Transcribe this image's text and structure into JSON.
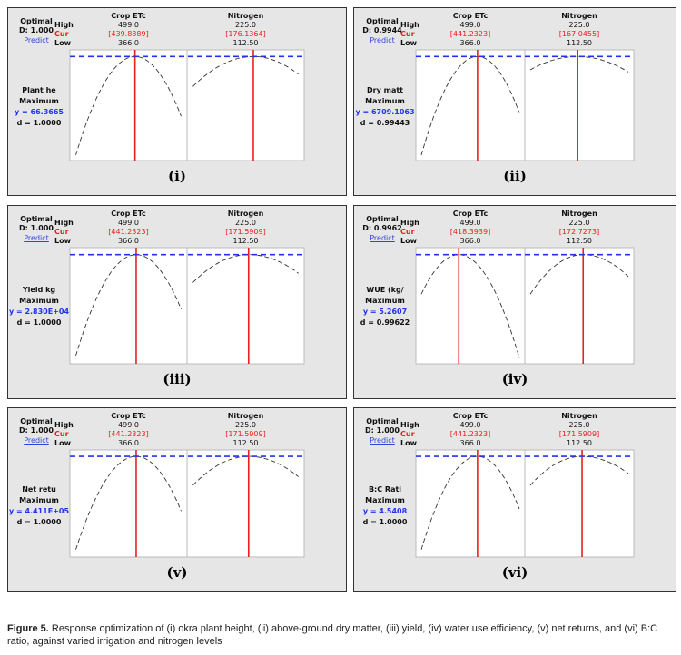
{
  "figure": {
    "panels": [
      {
        "label": "(i)",
        "optimal": "Optimal",
        "d_total": "D: 1.000",
        "predict": "Predict",
        "high": "High",
        "cur": "Cur",
        "low": "Low",
        "factors": [
          {
            "name": "Crop ETc",
            "high": "499.0",
            "cur": "[439.8889]",
            "low": "366.0"
          },
          {
            "name": "Nitrogen",
            "high": "225.0",
            "cur": "[176.1364]",
            "low": "112.50"
          }
        ],
        "response": "Plant he",
        "goal": "Maximum",
        "y": "y = 66.3665",
        "d": "d = 1.0000"
      },
      {
        "label": "(ii)",
        "optimal": "Optimal",
        "d_total": "D: 0.9944",
        "predict": "Predict",
        "high": "High",
        "cur": "Cur",
        "low": "Low",
        "factors": [
          {
            "name": "Crop ETc",
            "high": "499.0",
            "cur": "[441.2323]",
            "low": "366.0"
          },
          {
            "name": "Nitrogen",
            "high": "225.0",
            "cur": "[167.0455]",
            "low": "112.50"
          }
        ],
        "response": "Dry matt",
        "goal": "Maximum",
        "y": "y = 6709.1063",
        "d": "d = 0.99443"
      },
      {
        "label": "(iii)",
        "optimal": "Optimal",
        "d_total": "D: 1.000",
        "predict": "Predict",
        "high": "High",
        "cur": "Cur",
        "low": "Low",
        "factors": [
          {
            "name": "Crop ETc",
            "high": "499.0",
            "cur": "[441.2323]",
            "low": "366.0"
          },
          {
            "name": "Nitrogen",
            "high": "225.0",
            "cur": "[171.5909]",
            "low": "112.50"
          }
        ],
        "response": "Yield kg",
        "goal": "Maximum",
        "y": "y = 2.830E+04",
        "d": "d = 1.0000"
      },
      {
        "label": "(iv)",
        "optimal": "Optimal",
        "d_total": "D: 0.9962",
        "predict": "Predict",
        "high": "High",
        "cur": "Cur",
        "low": "Low",
        "factors": [
          {
            "name": "Crop ETc",
            "high": "499.0",
            "cur": "[418.3939]",
            "low": "366.0"
          },
          {
            "name": "Nitrogen",
            "high": "225.0",
            "cur": "[172.7273]",
            "low": "112.50"
          }
        ],
        "response": "WUE (kg/",
        "goal": "Maximum",
        "y": "y = 5.2607",
        "d": "d = 0.99622"
      },
      {
        "label": "(v)",
        "optimal": "Optimal",
        "d_total": "D: 1.000",
        "predict": "Predict",
        "high": "High",
        "cur": "Cur",
        "low": "Low",
        "factors": [
          {
            "name": "Crop ETc",
            "high": "499.0",
            "cur": "[441.2323]",
            "low": "366.0"
          },
          {
            "name": "Nitrogen",
            "high": "225.0",
            "cur": "[171.5909]",
            "low": "112.50"
          }
        ],
        "response": "Net retu",
        "goal": "Maximum",
        "y": "y = 4.411E+05",
        "d": "d = 1.0000"
      },
      {
        "label": "(vi)",
        "optimal": "Optimal",
        "d_total": "D: 1.000",
        "predict": "Predict",
        "high": "High",
        "cur": "Cur",
        "low": "Low",
        "factors": [
          {
            "name": "Crop ETc",
            "high": "499.0",
            "cur": "[441.2323]",
            "low": "366.0"
          },
          {
            "name": "Nitrogen",
            "high": "225.0",
            "cur": "[171.5909]",
            "low": "112.50"
          }
        ],
        "response": "B:C Rati",
        "goal": "Maximum",
        "y": "y = 4.5408",
        "d": "d = 1.0000"
      }
    ],
    "caption_label": "Figure 5.",
    "caption_text": " Response optimization of (i) okra plant height, (ii) above-ground dry matter, (iii) yield, (iv) water use efficiency, (v) net returns,  and (vi) B:C ratio, against varied irrigation and nitrogen levels"
  },
  "colors": {
    "panel_bg": "#e6e6e6",
    "current": "#e82020",
    "target": "#2233ee",
    "curve": "#333333",
    "predict_link": "#3344dd"
  }
}
